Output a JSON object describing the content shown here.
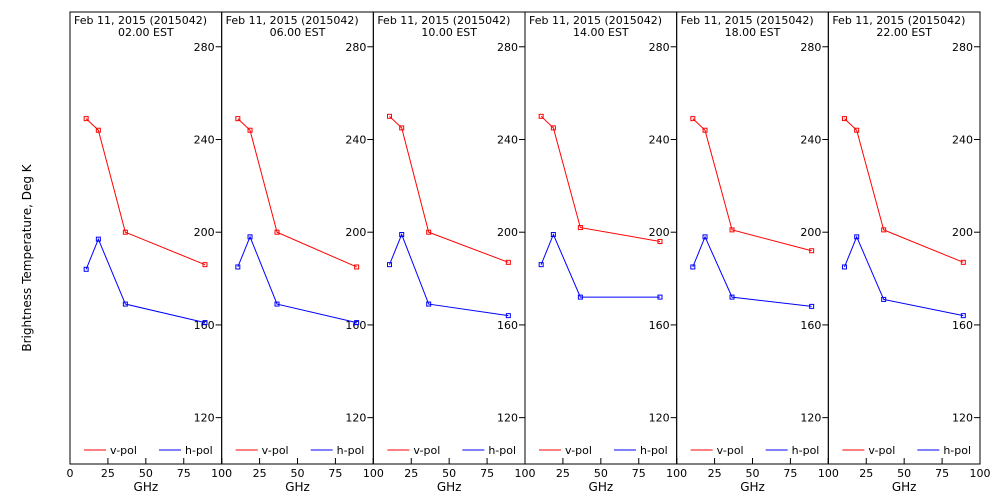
{
  "figure": {
    "ylabel": "Brightness Temperature, Deg K",
    "xlabel": "GHz",
    "colors": {
      "v_pol": "#ff0000",
      "h_pol": "#0000ff",
      "axis": "#000000",
      "background": "#ffffff"
    },
    "xlim": [
      0,
      100
    ],
    "ylim": [
      100,
      295
    ],
    "xticks": [
      "0",
      "25",
      "50",
      "75",
      "100"
    ],
    "yticks": [
      "120",
      "160",
      "200",
      "240",
      "280"
    ]
  },
  "chart_data": [
    {
      "type": "line",
      "title_line1": "Feb 11, 2015 (2015042)",
      "title_line2": "02.00 EST",
      "xlabel": "GHz",
      "ylabel": "Brightness Temperature, Deg K",
      "x": [
        10.65,
        18.7,
        36.5,
        89.0
      ],
      "series": [
        {
          "name": "v-pol",
          "color": "#ff0000",
          "values": [
            249,
            244,
            200,
            186
          ]
        },
        {
          "name": "h-pol",
          "color": "#0000ff",
          "values": [
            184,
            197,
            169,
            161
          ]
        }
      ],
      "xlim": [
        0,
        100
      ],
      "ylim": [
        100,
        295
      ],
      "legend": "bottom"
    },
    {
      "type": "line",
      "title_line1": "Feb 11, 2015 (2015042)",
      "title_line2": "06.00 EST",
      "xlabel": "GHz",
      "ylabel": "Brightness Temperature, Deg K",
      "x": [
        10.65,
        18.7,
        36.5,
        89.0
      ],
      "series": [
        {
          "name": "v-pol",
          "color": "#ff0000",
          "values": [
            249,
            244,
            200,
            185
          ]
        },
        {
          "name": "h-pol",
          "color": "#0000ff",
          "values": [
            185,
            198,
            169,
            161
          ]
        }
      ],
      "xlim": [
        0,
        100
      ],
      "ylim": [
        100,
        295
      ],
      "legend": "bottom"
    },
    {
      "type": "line",
      "title_line1": "Feb 11, 2015 (2015042)",
      "title_line2": "10.00 EST",
      "xlabel": "GHz",
      "ylabel": "Brightness Temperature, Deg K",
      "x": [
        10.65,
        18.7,
        36.5,
        89.0
      ],
      "series": [
        {
          "name": "v-pol",
          "color": "#ff0000",
          "values": [
            250,
            245,
            200,
            187
          ]
        },
        {
          "name": "h-pol",
          "color": "#0000ff",
          "values": [
            186,
            199,
            169,
            164
          ]
        }
      ],
      "xlim": [
        0,
        100
      ],
      "ylim": [
        100,
        295
      ],
      "legend": "bottom"
    },
    {
      "type": "line",
      "title_line1": "Feb 11, 2015 (2015042)",
      "title_line2": "14.00 EST",
      "xlabel": "GHz",
      "ylabel": "Brightness Temperature, Deg K",
      "x": [
        10.65,
        18.7,
        36.5,
        89.0
      ],
      "series": [
        {
          "name": "v-pol",
          "color": "#ff0000",
          "values": [
            250,
            245,
            202,
            196
          ]
        },
        {
          "name": "h-pol",
          "color": "#0000ff",
          "values": [
            186,
            199,
            172,
            172
          ]
        }
      ],
      "xlim": [
        0,
        100
      ],
      "ylim": [
        100,
        295
      ],
      "legend": "bottom"
    },
    {
      "type": "line",
      "title_line1": "Feb 11, 2015 (2015042)",
      "title_line2": "18.00 EST",
      "xlabel": "GHz",
      "ylabel": "Brightness Temperature, Deg K",
      "x": [
        10.65,
        18.7,
        36.5,
        89.0
      ],
      "series": [
        {
          "name": "v-pol",
          "color": "#ff0000",
          "values": [
            249,
            244,
            201,
            192
          ]
        },
        {
          "name": "h-pol",
          "color": "#0000ff",
          "values": [
            185,
            198,
            172,
            168
          ]
        }
      ],
      "xlim": [
        0,
        100
      ],
      "ylim": [
        100,
        295
      ],
      "legend": "bottom"
    },
    {
      "type": "line",
      "title_line1": "Feb 11, 2015 (2015042)",
      "title_line2": "22.00 EST",
      "xlabel": "GHz",
      "ylabel": "Brightness Temperature, Deg K",
      "x": [
        10.65,
        18.7,
        36.5,
        89.0
      ],
      "series": [
        {
          "name": "v-pol",
          "color": "#ff0000",
          "values": [
            249,
            244,
            201,
            187
          ]
        },
        {
          "name": "h-pol",
          "color": "#0000ff",
          "values": [
            185,
            198,
            171,
            164
          ]
        }
      ],
      "xlim": [
        0,
        100
      ],
      "ylim": [
        100,
        295
      ],
      "legend": "bottom"
    }
  ]
}
